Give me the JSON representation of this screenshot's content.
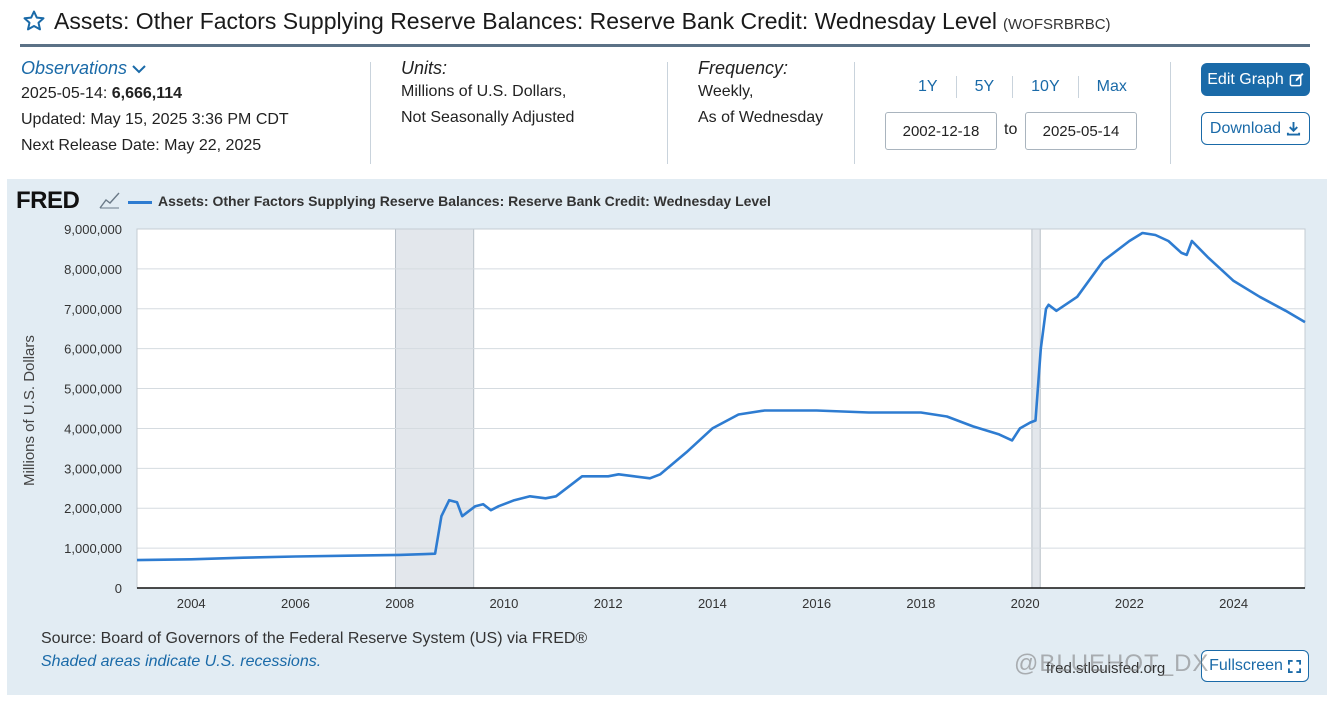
{
  "header": {
    "title": "Assets: Other Factors Supplying Reserve Balances: Reserve Bank Credit: Wednesday Level",
    "series_id": "(WOFSRBRBC)",
    "icons": {
      "star": "star-outline-icon"
    }
  },
  "observations": {
    "heading": "Observations",
    "date": "2025-05-14:",
    "value": "6,666,114",
    "updated": "Updated: May 15, 2025 3:36 PM CDT",
    "next_release": "Next Release Date: May 22, 2025"
  },
  "units": {
    "heading": "Units:",
    "line1": "Millions of U.S. Dollars,",
    "line2": "Not Seasonally Adjusted"
  },
  "frequency": {
    "heading": "Frequency:",
    "line1": "Weekly,",
    "line2": "As of Wednesday"
  },
  "range": {
    "buttons": [
      "1Y",
      "5Y",
      "10Y",
      "Max"
    ],
    "start": "2002-12-18",
    "to_label": "to",
    "end": "2025-05-14"
  },
  "actions": {
    "edit_graph": "Edit Graph",
    "download": "Download",
    "fullscreen": "Fullscreen"
  },
  "branding": {
    "logo": "FRED",
    "url": "fred.stlouisfed.org",
    "watermark": "@BLUEHOT_DX"
  },
  "colors": {
    "accent": "#1a6aa8",
    "series_line": "#2e7cd1",
    "panel_bg": "#e2ecf3",
    "recession": "#e3e7ec"
  },
  "footer": {
    "source": "Source: Board of Governors of the Federal Reserve System (US) via FRED®",
    "note": "Shaded areas indicate U.S. recessions."
  },
  "chart_data": {
    "type": "line",
    "title": "",
    "legend": "Assets: Other Factors Supplying Reserve Balances: Reserve Bank Credit: Wednesday Level",
    "xlabel": "",
    "ylabel": "Millions of U.S. Dollars",
    "ylim": [
      0,
      9000000
    ],
    "xlim": [
      2002.96,
      2025.37
    ],
    "y_ticks": [
      0,
      1000000,
      2000000,
      3000000,
      4000000,
      5000000,
      6000000,
      7000000,
      8000000,
      9000000
    ],
    "y_tick_labels": [
      "0",
      "1,000,000",
      "2,000,000",
      "3,000,000",
      "4,000,000",
      "5,000,000",
      "6,000,000",
      "7,000,000",
      "8,000,000",
      "9,000,000"
    ],
    "x_ticks": [
      2004,
      2006,
      2008,
      2010,
      2012,
      2014,
      2016,
      2018,
      2020,
      2022,
      2024
    ],
    "x_tick_labels": [
      "2004",
      "2006",
      "2008",
      "2010",
      "2012",
      "2014",
      "2016",
      "2018",
      "2020",
      "2022",
      "2024"
    ],
    "grid": true,
    "recessions": [
      [
        2007.92,
        2009.42
      ],
      [
        2020.13,
        2020.29
      ]
    ],
    "series": [
      {
        "name": "Assets: Other Factors Supplying Reserve Balances: Reserve Bank Credit: Wednesday Level",
        "x": [
          2002.96,
          2004.0,
          2005.0,
          2006.0,
          2007.0,
          2008.0,
          2008.5,
          2008.68,
          2008.8,
          2008.95,
          2009.1,
          2009.2,
          2009.3,
          2009.45,
          2009.6,
          2009.75,
          2009.9,
          2010.2,
          2010.5,
          2010.8,
          2011.0,
          2011.3,
          2011.5,
          2012.0,
          2012.2,
          2012.5,
          2012.8,
          2013.0,
          2013.5,
          2014.0,
          2014.5,
          2015.0,
          2016.0,
          2017.0,
          2018.0,
          2018.5,
          2019.0,
          2019.5,
          2019.75,
          2019.9,
          2020.1,
          2020.2,
          2020.3,
          2020.4,
          2020.45,
          2020.6,
          2021.0,
          2021.5,
          2022.0,
          2022.25,
          2022.5,
          2022.75,
          2023.0,
          2023.1,
          2023.2,
          2023.5,
          2024.0,
          2024.5,
          2025.0,
          2025.37
        ],
        "values": [
          700000,
          720000,
          760000,
          790000,
          810000,
          830000,
          850000,
          860000,
          1800000,
          2200000,
          2150000,
          1800000,
          1900000,
          2050000,
          2100000,
          1950000,
          2050000,
          2200000,
          2300000,
          2250000,
          2300000,
          2600000,
          2800000,
          2800000,
          2850000,
          2800000,
          2750000,
          2850000,
          3400000,
          4000000,
          4350000,
          4450000,
          4450000,
          4400000,
          4400000,
          4300000,
          4050000,
          3850000,
          3700000,
          4000000,
          4150000,
          4200000,
          6000000,
          7000000,
          7100000,
          6950000,
          7300000,
          8200000,
          8700000,
          8900000,
          8850000,
          8700000,
          8400000,
          8350000,
          8700000,
          8300000,
          7700000,
          7300000,
          6950000,
          6666114
        ]
      }
    ]
  }
}
